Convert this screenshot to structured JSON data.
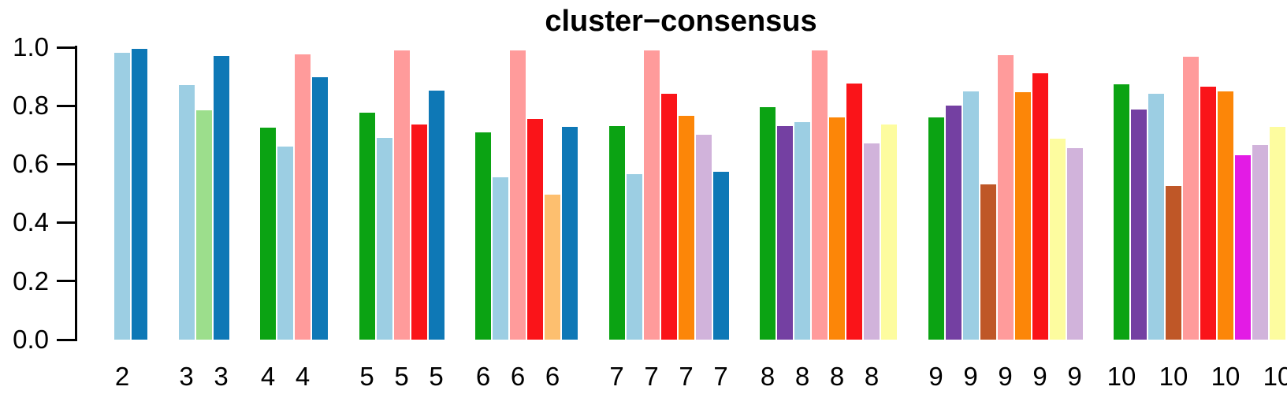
{
  "chart_data": {
    "type": "bar",
    "title": "cluster−consensus",
    "xlabel": "",
    "ylabel": "",
    "ylim": [
      0,
      1
    ],
    "grid": false,
    "legend": "none",
    "yticks": [
      {
        "value": 0.0,
        "label": "0.0"
      },
      {
        "value": 0.2,
        "label": "0.2"
      },
      {
        "value": 0.4,
        "label": "0.4"
      },
      {
        "value": 0.6,
        "label": "0.6"
      },
      {
        "value": 0.8,
        "label": "0.8"
      },
      {
        "value": 1.0,
        "label": "1.0"
      }
    ],
    "palette": {
      "lightblue": "#9CCEE3",
      "darkblue": "#0E78B6",
      "lightgreen": "#9CDE8C",
      "green": "#0BA313",
      "pink": "#FF9B9B",
      "red": "#FA1419",
      "lightorange": "#FDBF6F",
      "orange": "#FC8608",
      "lavender": "#D1B3DB",
      "purple": "#7440A2",
      "lightyellow": "#FDFC9F",
      "brown": "#BF5727",
      "magenta": "#E31BE5"
    },
    "groups": [
      {
        "k": "2",
        "bars": [
          {
            "cluster": 1,
            "value": 0.98,
            "color": "lightblue"
          },
          {
            "cluster": 2,
            "value": 0.995,
            "color": "darkblue"
          }
        ],
        "x_labels_at": [
          0
        ]
      },
      {
        "k": "3",
        "bars": [
          {
            "cluster": 1,
            "value": 0.87,
            "color": "lightblue"
          },
          {
            "cluster": 2,
            "value": 0.785,
            "color": "lightgreen"
          },
          {
            "cluster": 3,
            "value": 0.97,
            "color": "darkblue"
          }
        ],
        "x_labels_at": [
          0,
          2
        ]
      },
      {
        "k": "4",
        "bars": [
          {
            "cluster": 1,
            "value": 0.725,
            "color": "green"
          },
          {
            "cluster": 2,
            "value": 0.66,
            "color": "lightblue"
          },
          {
            "cluster": 3,
            "value": 0.975,
            "color": "pink"
          },
          {
            "cluster": 4,
            "value": 0.897,
            "color": "darkblue"
          }
        ],
        "x_labels_at": [
          0,
          2
        ]
      },
      {
        "k": "5",
        "bars": [
          {
            "cluster": 1,
            "value": 0.775,
            "color": "green"
          },
          {
            "cluster": 2,
            "value": 0.69,
            "color": "lightblue"
          },
          {
            "cluster": 3,
            "value": 0.99,
            "color": "pink"
          },
          {
            "cluster": 4,
            "value": 0.735,
            "color": "red"
          },
          {
            "cluster": 5,
            "value": 0.853,
            "color": "darkblue"
          }
        ],
        "x_labels_at": [
          0,
          2,
          4
        ]
      },
      {
        "k": "6",
        "bars": [
          {
            "cluster": 1,
            "value": 0.71,
            "color": "green"
          },
          {
            "cluster": 2,
            "value": 0.555,
            "color": "lightblue"
          },
          {
            "cluster": 3,
            "value": 0.99,
            "color": "pink"
          },
          {
            "cluster": 4,
            "value": 0.755,
            "color": "red"
          },
          {
            "cluster": 5,
            "value": 0.495,
            "color": "lightorange"
          },
          {
            "cluster": 6,
            "value": 0.728,
            "color": "darkblue"
          }
        ],
        "x_labels_at": [
          0,
          2,
          4
        ]
      },
      {
        "k": "7",
        "bars": [
          {
            "cluster": 1,
            "value": 0.73,
            "color": "green"
          },
          {
            "cluster": 2,
            "value": 0.565,
            "color": "lightblue"
          },
          {
            "cluster": 3,
            "value": 0.99,
            "color": "pink"
          },
          {
            "cluster": 4,
            "value": 0.84,
            "color": "red"
          },
          {
            "cluster": 5,
            "value": 0.765,
            "color": "orange"
          },
          {
            "cluster": 6,
            "value": 0.7,
            "color": "lavender"
          },
          {
            "cluster": 7,
            "value": 0.575,
            "color": "darkblue"
          }
        ],
        "x_labels_at": [
          0,
          2,
          4,
          6
        ]
      },
      {
        "k": "8",
        "bars": [
          {
            "cluster": 1,
            "value": 0.795,
            "color": "green"
          },
          {
            "cluster": 2,
            "value": 0.73,
            "color": "purple"
          },
          {
            "cluster": 3,
            "value": 0.743,
            "color": "lightblue"
          },
          {
            "cluster": 4,
            "value": 0.99,
            "color": "pink"
          },
          {
            "cluster": 5,
            "value": 0.76,
            "color": "orange"
          },
          {
            "cluster": 6,
            "value": 0.877,
            "color": "red"
          },
          {
            "cluster": 7,
            "value": 0.67,
            "color": "lavender"
          },
          {
            "cluster": 8,
            "value": 0.737,
            "color": "lightyellow"
          }
        ],
        "x_labels_at": [
          0,
          2,
          4,
          6
        ]
      },
      {
        "k": "9",
        "bars": [
          {
            "cluster": 1,
            "value": 0.76,
            "color": "green"
          },
          {
            "cluster": 2,
            "value": 0.8,
            "color": "purple"
          },
          {
            "cluster": 3,
            "value": 0.85,
            "color": "lightblue"
          },
          {
            "cluster": 4,
            "value": 0.532,
            "color": "brown"
          },
          {
            "cluster": 5,
            "value": 0.972,
            "color": "pink"
          },
          {
            "cluster": 6,
            "value": 0.847,
            "color": "orange"
          },
          {
            "cluster": 7,
            "value": 0.912,
            "color": "red"
          },
          {
            "cluster": 8,
            "value": 0.686,
            "color": "lightyellow"
          },
          {
            "cluster": 9,
            "value": 0.654,
            "color": "lavender"
          }
        ],
        "x_labels_at": [
          0,
          2,
          4,
          6,
          8
        ]
      },
      {
        "k": "10",
        "bars": [
          {
            "cluster": 1,
            "value": 0.872,
            "color": "green"
          },
          {
            "cluster": 2,
            "value": 0.786,
            "color": "purple"
          },
          {
            "cluster": 3,
            "value": 0.84,
            "color": "lightblue"
          },
          {
            "cluster": 4,
            "value": 0.525,
            "color": "brown"
          },
          {
            "cluster": 5,
            "value": 0.967,
            "color": "pink"
          },
          {
            "cluster": 6,
            "value": 0.866,
            "color": "red"
          },
          {
            "cluster": 7,
            "value": 0.85,
            "color": "orange"
          },
          {
            "cluster": 8,
            "value": 0.63,
            "color": "magenta"
          },
          {
            "cluster": 9,
            "value": 0.665,
            "color": "lavender"
          },
          {
            "cluster": 10,
            "value": 0.727,
            "color": "lightyellow"
          }
        ],
        "x_labels_at": [
          0,
          3,
          6,
          9
        ]
      }
    ]
  }
}
